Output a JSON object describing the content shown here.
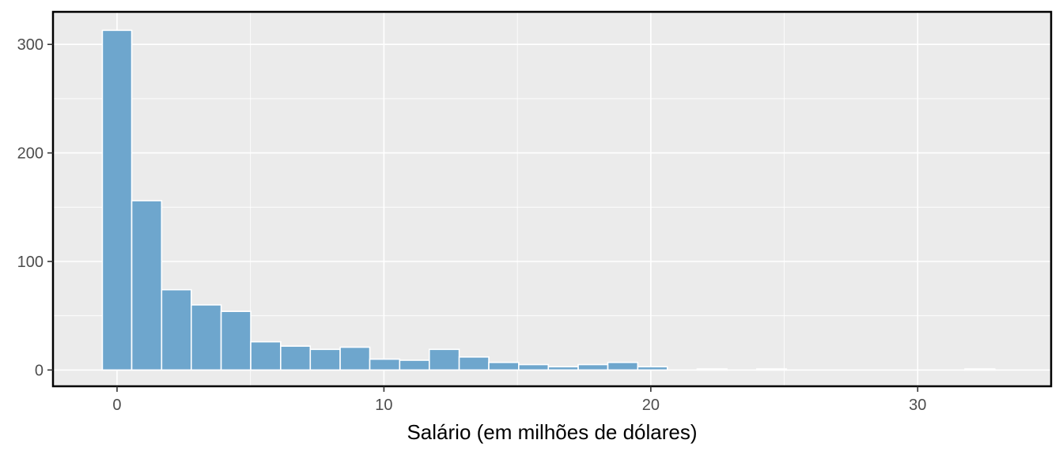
{
  "chart_data": {
    "type": "bar",
    "subtype": "histogram",
    "title": "",
    "xlabel": "Salário (em milhões de dólares)",
    "ylabel": "",
    "xlim": [
      -2.4,
      35.0
    ],
    "ylim": [
      -15,
      330
    ],
    "x_ticks": [
      0,
      10,
      20,
      30
    ],
    "y_ticks": [
      0,
      100,
      200,
      300
    ],
    "grid": true,
    "legend": "none",
    "colors": {
      "bar_fill": "#6ea6cd",
      "bar_edge": "#ffffff",
      "panel_bg": "#ebebeb",
      "grid": "#ffffff",
      "frame": "#000000"
    },
    "bins": [
      {
        "x0": -0.55,
        "x1": 0.55,
        "count": 313
      },
      {
        "x0": 0.55,
        "x1": 1.67,
        "count": 156
      },
      {
        "x0": 1.67,
        "x1": 2.78,
        "count": 74
      },
      {
        "x0": 2.78,
        "x1": 3.9,
        "count": 60
      },
      {
        "x0": 3.9,
        "x1": 5.01,
        "count": 54
      },
      {
        "x0": 5.01,
        "x1": 6.13,
        "count": 26
      },
      {
        "x0": 6.13,
        "x1": 7.24,
        "count": 22
      },
      {
        "x0": 7.24,
        "x1": 8.36,
        "count": 19
      },
      {
        "x0": 8.36,
        "x1": 9.47,
        "count": 21
      },
      {
        "x0": 9.47,
        "x1": 10.59,
        "count": 10
      },
      {
        "x0": 10.59,
        "x1": 11.7,
        "count": 9
      },
      {
        "x0": 11.7,
        "x1": 12.82,
        "count": 19
      },
      {
        "x0": 12.82,
        "x1": 13.93,
        "count": 12
      },
      {
        "x0": 13.93,
        "x1": 15.05,
        "count": 7
      },
      {
        "x0": 15.05,
        "x1": 16.16,
        "count": 5
      },
      {
        "x0": 16.16,
        "x1": 17.28,
        "count": 3
      },
      {
        "x0": 17.28,
        "x1": 18.39,
        "count": 5
      },
      {
        "x0": 18.39,
        "x1": 19.51,
        "count": 7
      },
      {
        "x0": 19.51,
        "x1": 20.62,
        "count": 3
      },
      {
        "x0": 20.62,
        "x1": 21.74,
        "count": 0
      },
      {
        "x0": 21.74,
        "x1": 22.85,
        "count": 1
      },
      {
        "x0": 22.85,
        "x1": 23.97,
        "count": 0
      },
      {
        "x0": 23.97,
        "x1": 25.08,
        "count": 1
      },
      {
        "x0": 25.08,
        "x1": 26.2,
        "count": 0
      },
      {
        "x0": 26.2,
        "x1": 27.31,
        "count": 0
      },
      {
        "x0": 27.31,
        "x1": 28.43,
        "count": 0
      },
      {
        "x0": 28.43,
        "x1": 29.54,
        "count": 0
      },
      {
        "x0": 29.54,
        "x1": 30.66,
        "count": 0
      },
      {
        "x0": 30.66,
        "x1": 31.77,
        "count": 0
      },
      {
        "x0": 31.77,
        "x1": 32.89,
        "count": 1
      }
    ]
  }
}
